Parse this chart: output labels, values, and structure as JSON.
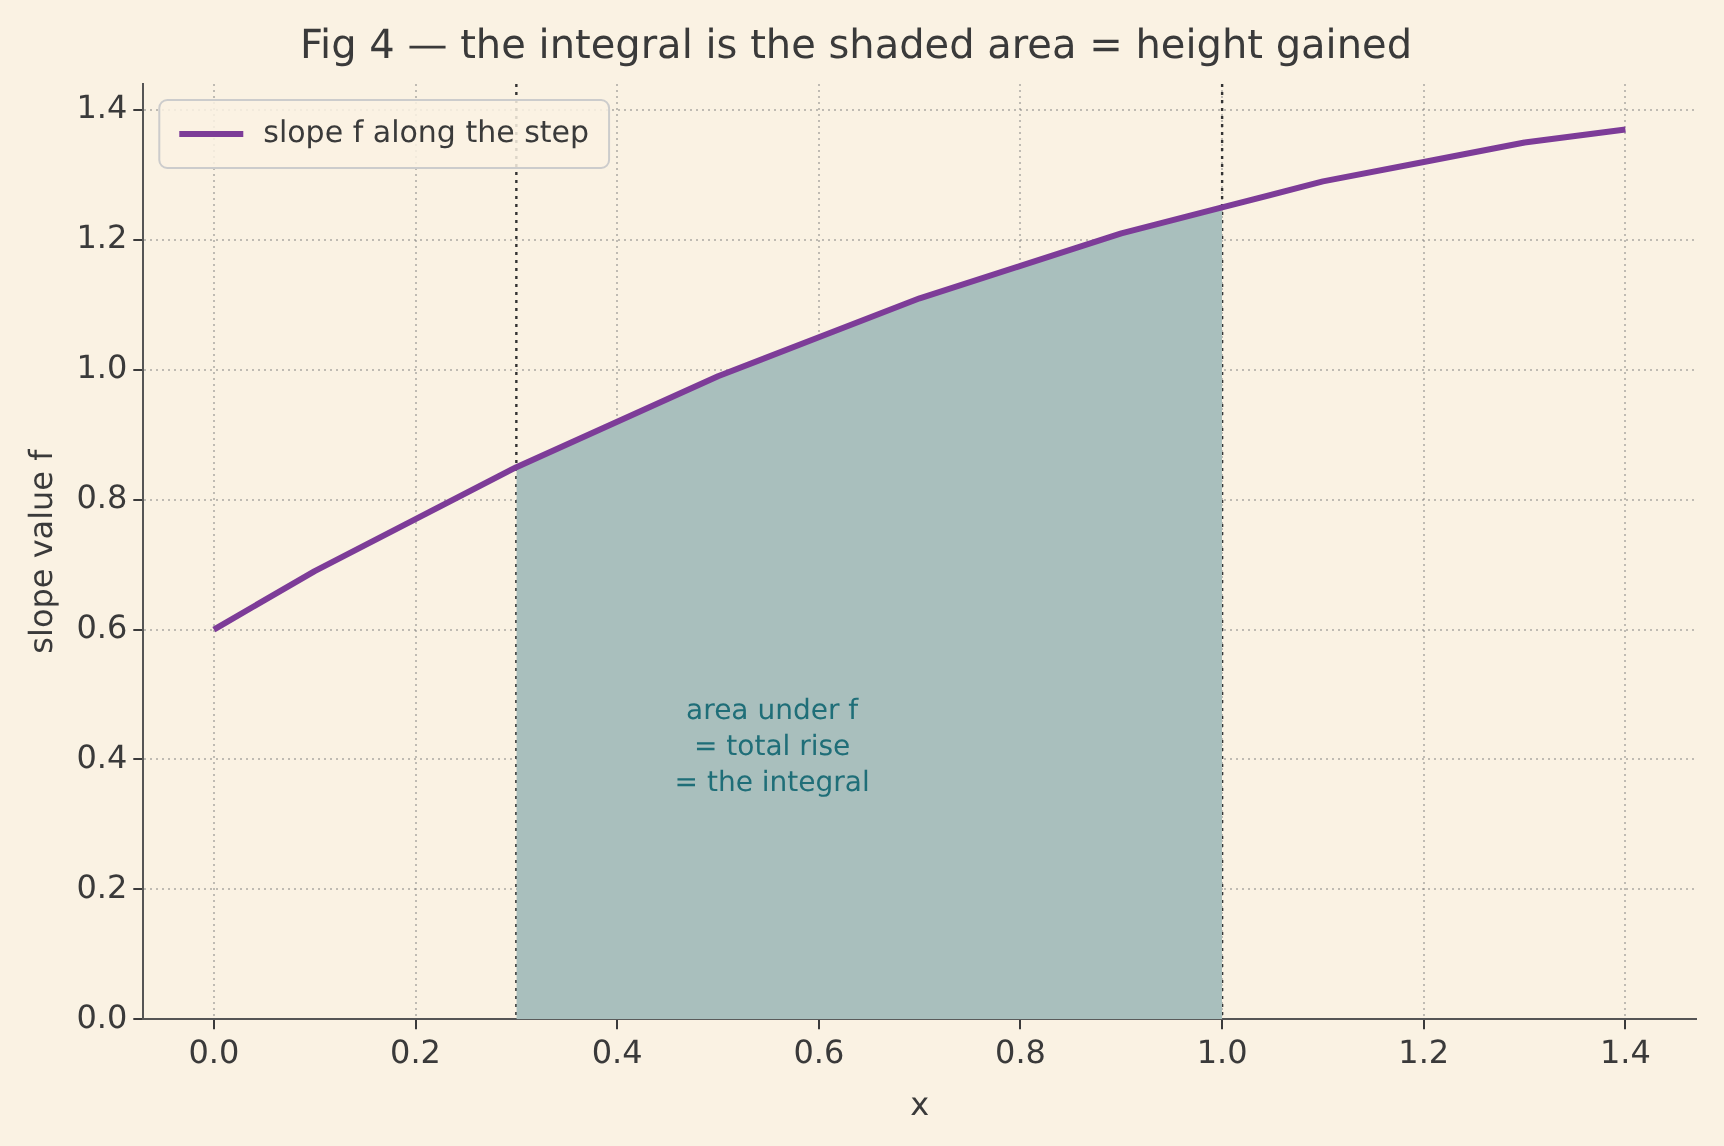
{
  "chart_data": {
    "type": "line",
    "title": "Fig 4 — the integral is the shaded area = height gained",
    "xlabel": "x",
    "ylabel": "slope value f",
    "x": [
      0,
      0.1,
      0.2,
      0.3,
      0.4,
      0.5,
      0.6,
      0.7,
      0.8,
      0.9,
      1.0,
      1.1,
      1.2,
      1.3,
      1.4
    ],
    "series": [
      {
        "name": "slope f along the step",
        "color": "#7d3c98",
        "values": [
          0.6,
          0.69,
          0.77,
          0.85,
          0.92,
          0.99,
          1.05,
          1.11,
          1.16,
          1.21,
          1.25,
          1.29,
          1.32,
          1.35,
          1.37
        ]
      },
      {
        "type": "area",
        "color": "#a9bfbd",
        "x": [
          0.3,
          0.4,
          0.5,
          0.6,
          0.7,
          0.8,
          0.9,
          1.0
        ],
        "values": [
          0.85,
          0.92,
          0.99,
          1.05,
          1.11,
          1.16,
          1.21,
          1.25
        ]
      }
    ],
    "xlim": [
      -0.07,
      1.47
    ],
    "xticks": [
      {
        "value": 0,
        "label": "0.0"
      },
      0.2,
      0.4,
      0.6,
      0.8,
      {
        "value": 1,
        "label": "1.0"
      },
      1.2,
      1.4
    ],
    "ylim": [
      0,
      1.44
    ],
    "yticks": [
      {
        "value": 0,
        "label": "0.0"
      },
      0.2,
      0.4,
      0.6,
      0.8,
      {
        "value": 1,
        "label": "1.0"
      },
      1.2,
      1.4
    ],
    "ref_lines": [
      {
        "axis": "x",
        "value": 0.3,
        "color": "#333333",
        "line_style": "dotted"
      },
      {
        "axis": "x",
        "value": 1.0,
        "color": "#333333",
        "line_style": "dotted"
      }
    ],
    "annotations": [
      "area under f\n= total rise\n= the integral"
    ],
    "grid": true,
    "legend": "top left",
    "marker": "none",
    "line_style": "solid"
  }
}
